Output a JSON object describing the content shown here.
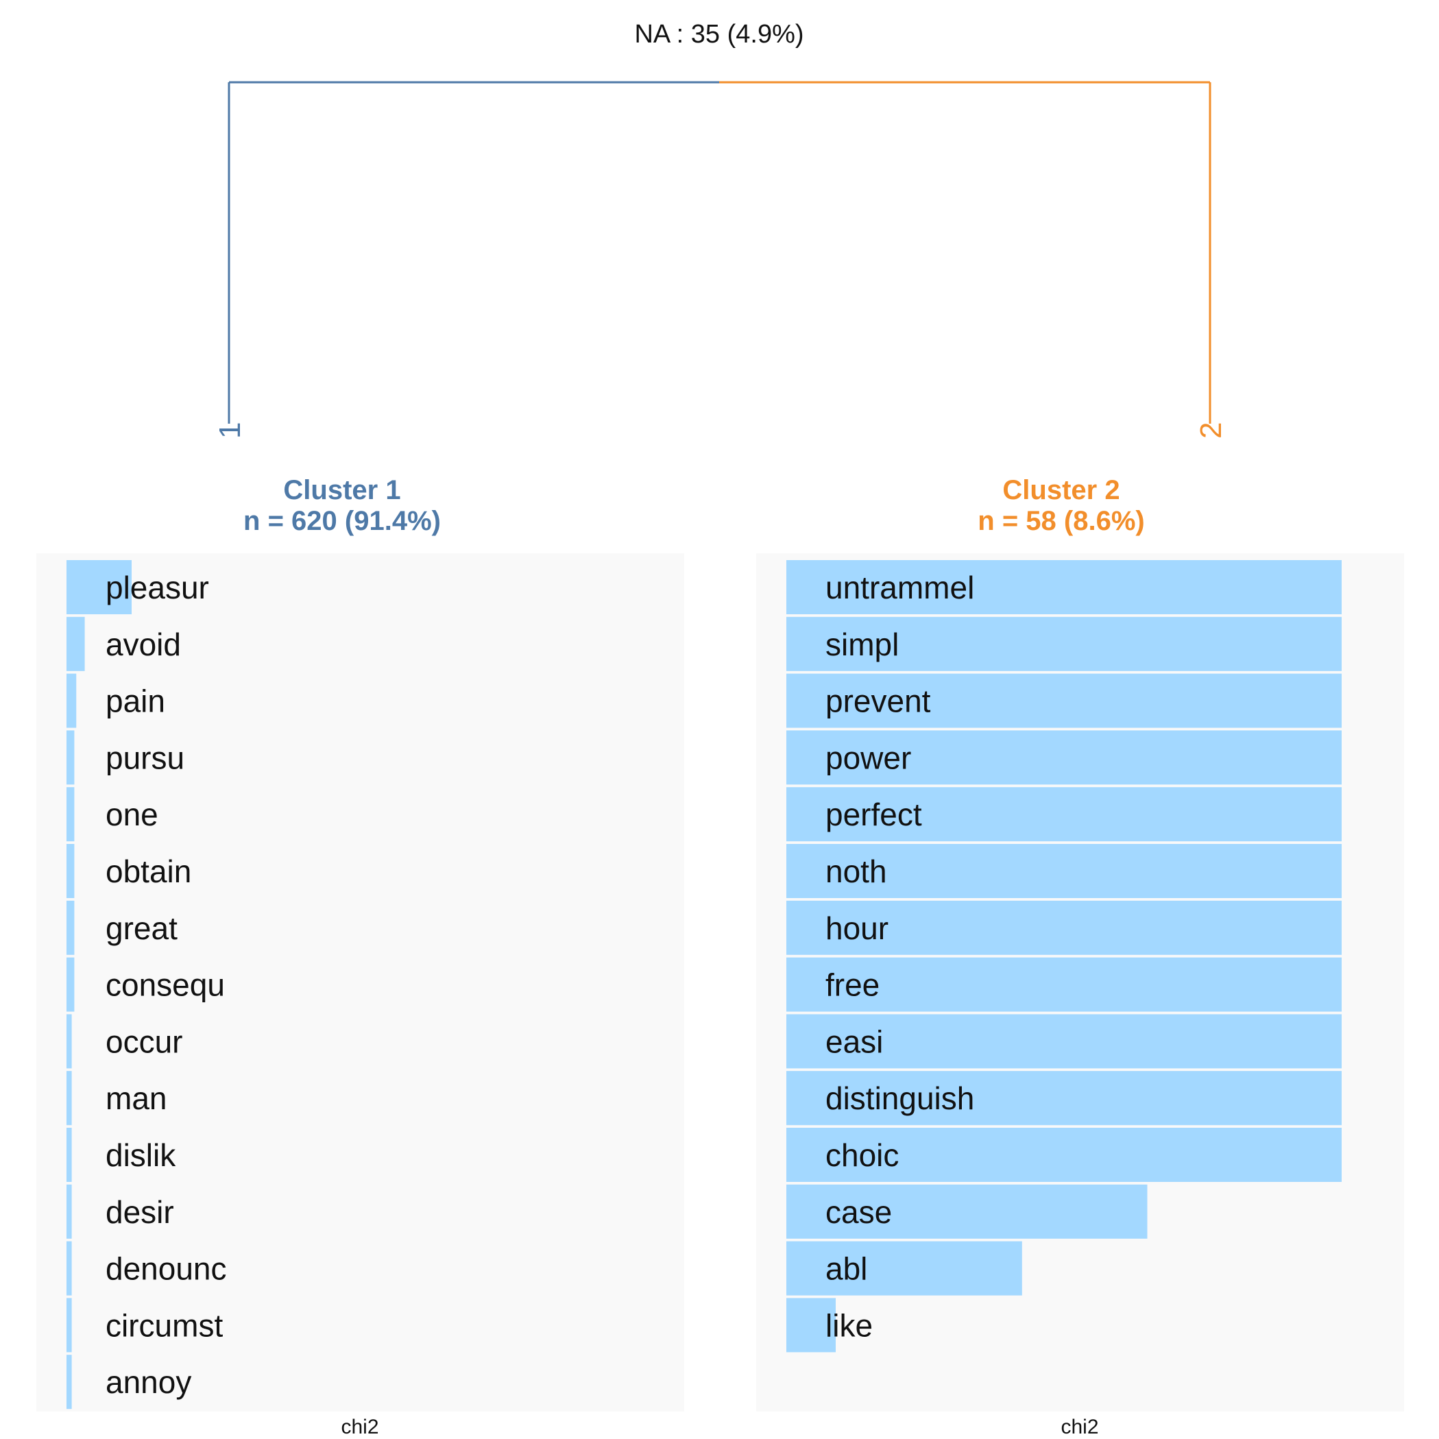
{
  "na_label": "NA : 35 (4.9%)",
  "colors": {
    "cluster1": "#4E79A7",
    "cluster2": "#F28E2B",
    "bar": "#A3D8FF",
    "panel_bg": "#F9F9F9"
  },
  "dendrogram": {
    "leaves": [
      {
        "label": "1",
        "cluster": "cluster1"
      },
      {
        "label": "2",
        "cluster": "cluster2"
      }
    ]
  },
  "chart_data": [
    {
      "type": "bar",
      "orientation": "horizontal",
      "title": "Cluster 1",
      "subtitle": "n = 620 (91.4%)",
      "xlabel": "chi2",
      "xlim": [
        0,
        9
      ],
      "categories": [
        "pleasur",
        "avoid",
        "pain",
        "pursu",
        "one",
        "obtain",
        "great",
        "consequ",
        "occur",
        "man",
        "dislik",
        "desir",
        "denounc",
        "circumst",
        "annoy"
      ],
      "values": [
        1.0,
        0.28,
        0.15,
        0.12,
        0.12,
        0.12,
        0.12,
        0.12,
        0.08,
        0.08,
        0.08,
        0.08,
        0.08,
        0.08,
        0.08
      ]
    },
    {
      "type": "bar",
      "orientation": "horizontal",
      "title": "Cluster 2",
      "subtitle": "n = 58 (8.6%)",
      "xlabel": "chi2",
      "xlim": [
        0,
        9.5
      ],
      "categories": [
        "untrammel",
        "simpl",
        "prevent",
        "power",
        "perfect",
        "noth",
        "hour",
        "free",
        "easi",
        "distinguish",
        "choic",
        "case",
        "abl",
        "like"
      ],
      "values": [
        9.0,
        9.0,
        9.0,
        9.0,
        9.0,
        9.0,
        9.0,
        9.0,
        9.0,
        9.0,
        9.0,
        5.85,
        3.82,
        0.8
      ]
    }
  ]
}
